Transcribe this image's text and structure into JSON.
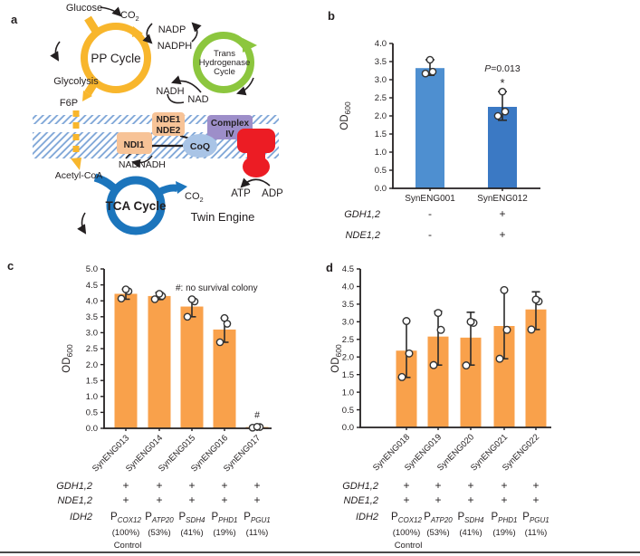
{
  "figure": {
    "letters": {
      "a": "a",
      "b": "b",
      "c": "c",
      "d": "d"
    }
  },
  "panel_a": {
    "labels": {
      "glucose": "Glucose",
      "co2_top": "CO",
      "co2_top_sub": "2",
      "pp_cycle": "PP Cycle",
      "nadp": "NADP",
      "nadph": "NADPH",
      "trans_line1": "Trans",
      "trans_line2": "Hydrogenase",
      "trans_line3": "Cycle",
      "glycolysis": "Glycolysis",
      "f6p": "F6P",
      "nadh_upper": "NADH",
      "nad_upper": "NAD",
      "nde1": "NDE1",
      "nde2": "NDE2",
      "complex_line1": "Complex",
      "complex_line2": "IV",
      "ndi1": "NDI1",
      "coq": "CoQ",
      "nad_lower": "NAD",
      "nadh_lower": "NADH",
      "acetyl_coa": "Acetyl-CoA",
      "tca_cycle": "TCA Cycle",
      "co2_bottom": "CO",
      "co2_bottom_sub": "2",
      "atp": "ATP",
      "adp": "ADP",
      "twin_engine": "Twin Engine"
    },
    "colors": {
      "pp_ring": "#F8B62C",
      "green_ring": "#8CC63E",
      "tca_ring": "#1C75BC",
      "enzyme_box": "#F7C397",
      "complex_box": "#9D8EC9",
      "coq_fill": "#A9C4E6",
      "synthase": "#EC1C24",
      "membrane_hatch": "#7AA3D6",
      "box_text": "#2E3192",
      "twin_engine_text": "#7F7F7F"
    }
  },
  "panel_b": {
    "ylabel_main": "OD",
    "ylabel_sub": "600",
    "rows": [
      {
        "label": "GDH1,2",
        "values": [
          "-",
          "+"
        ]
      },
      {
        "label": "NDE1,2",
        "values": [
          "-",
          "+"
        ]
      }
    ]
  },
  "panel_c": {
    "ylabel_main": "OD",
    "ylabel_sub": "600",
    "rows": [
      {
        "label": "GDH1,2",
        "values": [
          "+",
          "+",
          "+",
          "+",
          "+"
        ]
      },
      {
        "label": "NDE1,2",
        "values": [
          "+",
          "+",
          "+",
          "+",
          "+"
        ]
      },
      {
        "label": "IDH2",
        "promoters": [
          {
            "p": "P",
            "sub": "COX12",
            "pct": "(100%)",
            "note": "Control"
          },
          {
            "p": "P",
            "sub": "ATP20",
            "pct": "(53%)"
          },
          {
            "p": "P",
            "sub": "SDH4",
            "pct": "(41%)"
          },
          {
            "p": "P",
            "sub": "PHD1",
            "pct": "(19%)"
          },
          {
            "p": "P",
            "sub": "PGU1",
            "pct": "(11%)"
          }
        ]
      }
    ]
  },
  "panel_d": {
    "ylabel_main": "OD",
    "ylabel_sub": "600",
    "rows": [
      {
        "label": "GDH1,2",
        "values": [
          "+",
          "+",
          "+",
          "+",
          "+"
        ]
      },
      {
        "label": "NDE1,2",
        "values": [
          "+",
          "+",
          "+",
          "+",
          "+"
        ]
      },
      {
        "label": "IDH2",
        "promoters": [
          {
            "p": "P",
            "sub": "COX12",
            "pct": "(100%)",
            "note": "Control"
          },
          {
            "p": "P",
            "sub": "ATP20",
            "pct": "(53%)"
          },
          {
            "p": "P",
            "sub": "SDH4",
            "pct": "(41%)"
          },
          {
            "p": "P",
            "sub": "PHD1",
            "pct": "(19%)"
          },
          {
            "p": "P",
            "sub": "PGU1",
            "pct": "(11%)"
          }
        ]
      }
    ]
  },
  "chart_data": [
    {
      "panel": "b",
      "type": "bar",
      "categories": [
        "SynENG001",
        "SynENG012"
      ],
      "values": [
        3.32,
        2.25
      ],
      "error_low": [
        3.12,
        1.88
      ],
      "error_high": [
        3.55,
        2.67
      ],
      "points": [
        [
          3.17,
          3.22,
          3.55
        ],
        [
          2.0,
          2.12,
          2.67
        ]
      ],
      "bar_colors": [
        "#4E8FD0",
        "#3B79C4"
      ],
      "ylabel": "OD600",
      "xlabel": "",
      "ylim": [
        0,
        4.0
      ],
      "yticks": [
        "0.0",
        "0.5",
        "1.0",
        "1.5",
        "2.0",
        "2.5",
        "3.0",
        "3.5",
        "4.0"
      ],
      "annotations": [
        {
          "italic_prefix": "P",
          "text": "=0.013",
          "col": 1,
          "y": 3.22
        },
        {
          "text": "*",
          "col": 1,
          "y": 2.8
        }
      ]
    },
    {
      "panel": "c",
      "type": "bar",
      "categories": [
        "SynENG013",
        "SynENG014",
        "SynENG015",
        "SynENG016",
        "SynENG017"
      ],
      "values": [
        4.22,
        4.15,
        3.82,
        3.1,
        0.04
      ],
      "error_low": [
        4.05,
        4.04,
        3.5,
        2.7,
        0.02
      ],
      "error_high": [
        4.36,
        4.26,
        4.05,
        3.46,
        0.06
      ],
      "points": [
        [
          4.07,
          4.3,
          4.36
        ],
        [
          4.05,
          4.15,
          4.22
        ],
        [
          3.5,
          3.98,
          4.05
        ],
        [
          2.7,
          3.28,
          3.46
        ],
        [
          0.02,
          0.04,
          0.05
        ]
      ],
      "bar_color": "#F9A14B",
      "ylabel": "OD600",
      "xlabel": "",
      "ylim": [
        0,
        5.0
      ],
      "yticks": [
        "0.0",
        "0.5",
        "1.0",
        "1.5",
        "2.0",
        "2.5",
        "3.0",
        "3.5",
        "4.0",
        "4.5",
        "5.0"
      ],
      "annotations": [
        {
          "text": "#: no survival colony",
          "pos": "note"
        },
        {
          "text": "#",
          "col": 4,
          "y": 0.32
        }
      ]
    },
    {
      "panel": "d",
      "type": "bar",
      "categories": [
        "SynENG018",
        "SynENG019",
        "SynENG020",
        "SynENG021",
        "SynENG022"
      ],
      "values": [
        2.18,
        2.58,
        2.55,
        2.88,
        3.35
      ],
      "error_low": [
        1.42,
        1.77,
        1.77,
        1.95,
        2.78
      ],
      "error_high": [
        3.02,
        3.3,
        3.27,
        3.9,
        3.85
      ],
      "points": [
        [
          1.43,
          2.1,
          3.02
        ],
        [
          1.77,
          2.77,
          3.25
        ],
        [
          1.76,
          2.97,
          3.0
        ],
        [
          1.95,
          2.77,
          3.9
        ],
        [
          2.78,
          3.58,
          3.63
        ]
      ],
      "bar_color": "#F9A14B",
      "ylabel": "OD600",
      "xlabel": "",
      "ylim": [
        0,
        4.5
      ],
      "yticks": [
        "0.0",
        "0.5",
        "1.0",
        "1.5",
        "2.0",
        "2.5",
        "3.0",
        "3.5",
        "4.0",
        "4.5"
      ],
      "annotations": []
    }
  ]
}
